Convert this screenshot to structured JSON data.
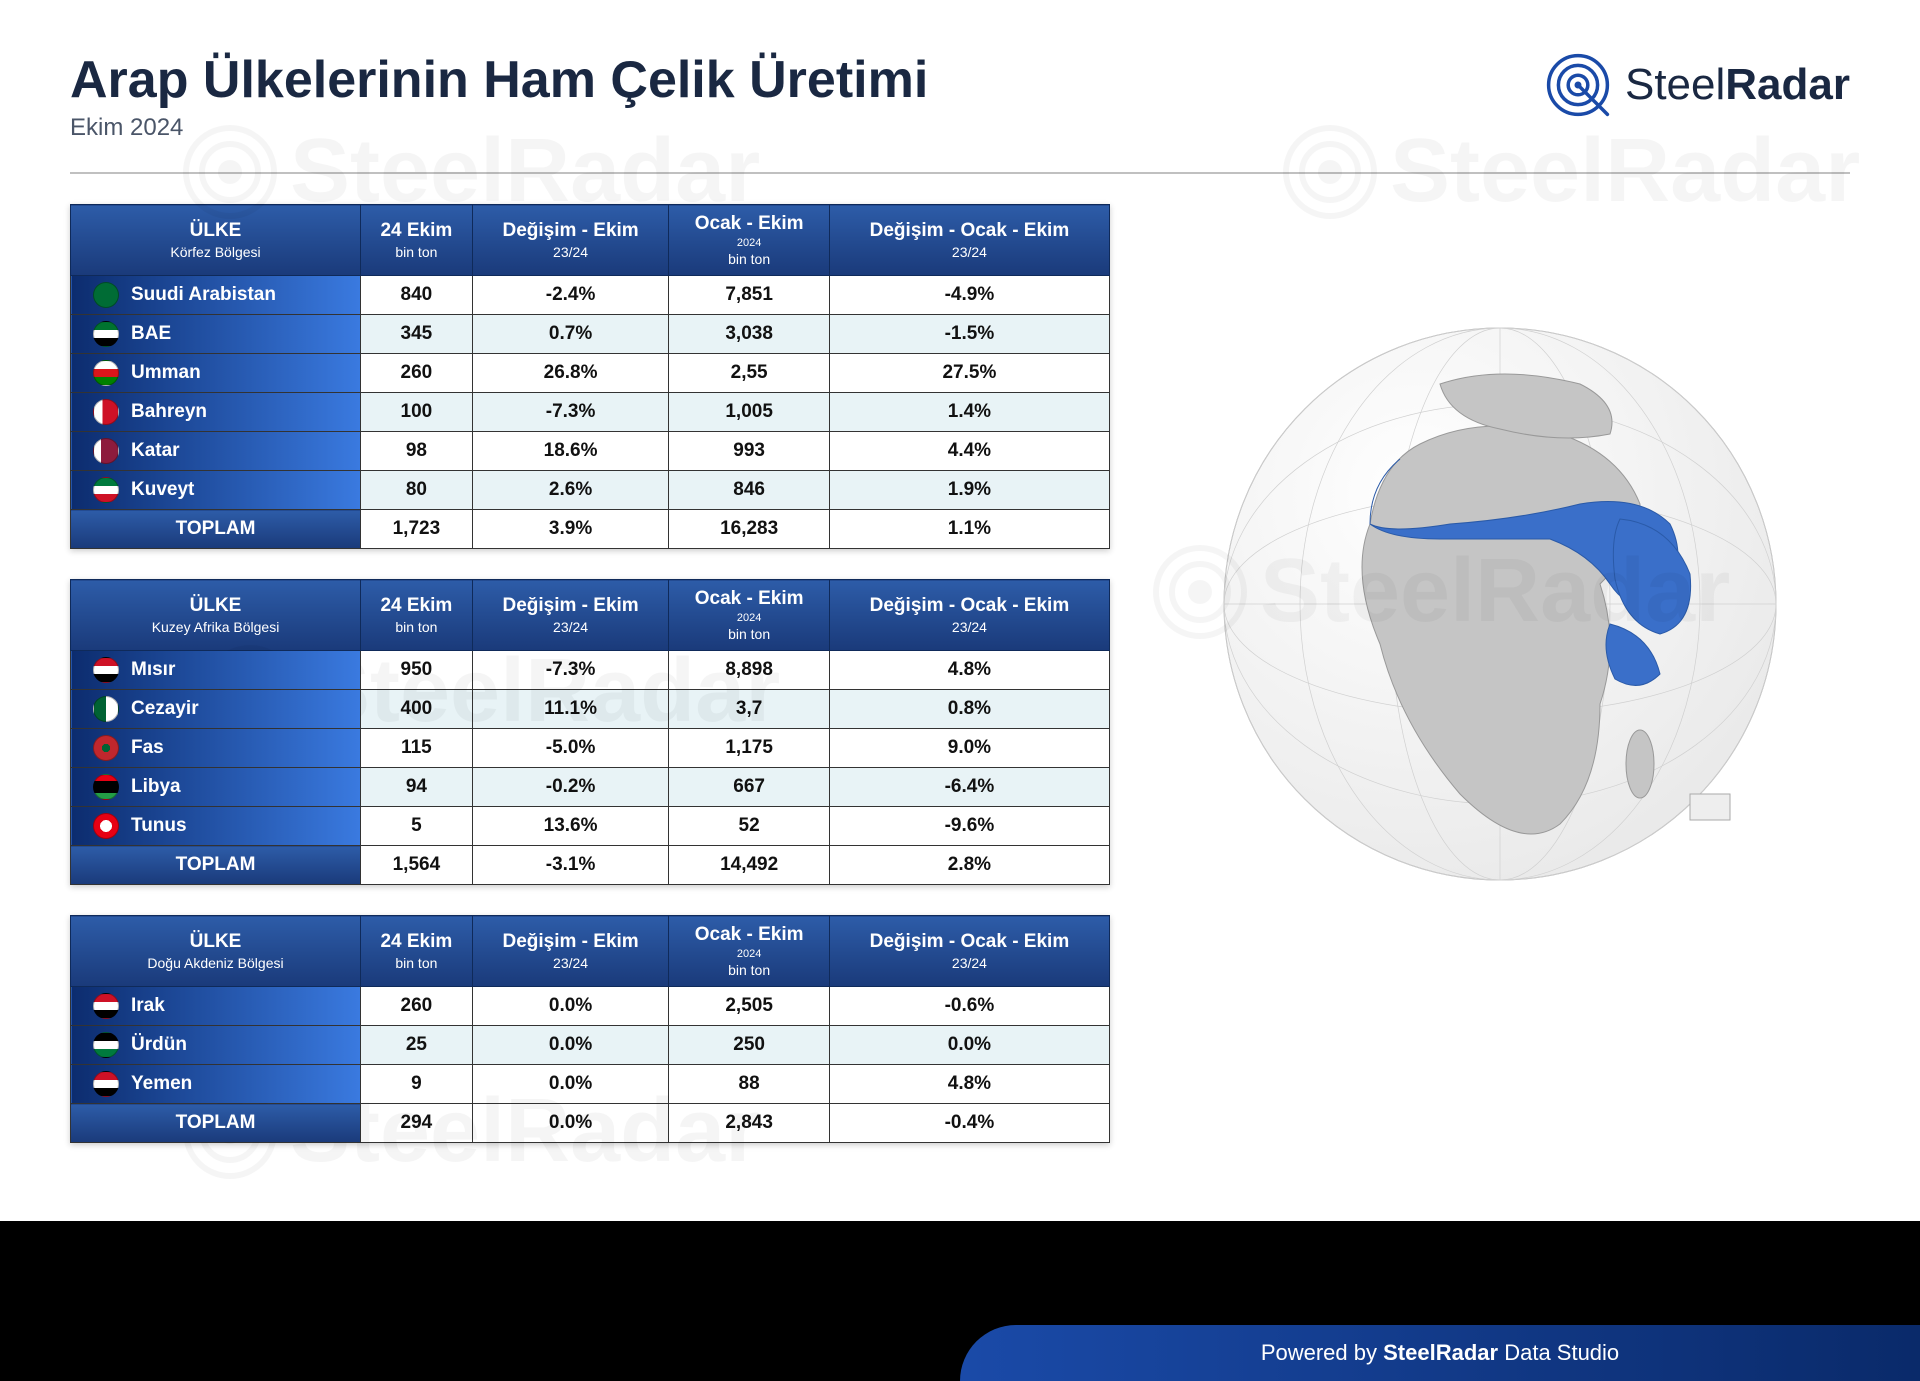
{
  "meta": {
    "title": "Arap Ülkelerinin Ham Çelik Üretimi",
    "subtitle": "Ekim 2024",
    "logo_text_1": "Steel",
    "logo_text_2": "Radar",
    "footer_prefix": "Powered by ",
    "footer_brand": "SteelRadar",
    "footer_suffix": " Data Studio",
    "watermark": "SteelRadar"
  },
  "colors": {
    "header_grad_top": "#2d5ca8",
    "header_grad_bottom": "#1a3a7a",
    "country_grad_left": "#0c2c6e",
    "country_grad_right": "#3a7ae0",
    "row_alt_bg": "#e8f3f6",
    "globe_land": "#c5c5c5",
    "globe_highlight": "#3a6fc9",
    "globe_ocean": "#ffffff",
    "title_color": "#1a2842",
    "watermark_color": "rgba(0,0,0,0.04)"
  },
  "columns": {
    "country_label": "ÜLKE",
    "c1_main": "24 Ekim",
    "c1_sub": "bin ton",
    "c2_main": "Değişim - Ekim",
    "c2_sub": "23/24",
    "c3_main": "Ocak - Ekim",
    "c3_mid": "2024",
    "c3_sub": "bin ton",
    "c4_main": "Değişim - Ocak - Ekim",
    "c4_sub": "23/24",
    "total_label": "TOPLAM"
  },
  "regions": [
    {
      "name": "Körfez Bölgesi",
      "rows": [
        {
          "country": "Suudi Arabistan",
          "flag_bg": "linear-gradient(#006c35,#006c35)",
          "v1": "840",
          "v2": "-2.4%",
          "v3": "7,851",
          "v4": "-4.9%"
        },
        {
          "country": "BAE",
          "flag_bg": "linear-gradient(to bottom,#00732f 33%,#fff 33% 66%,#000 66%)",
          "v1": "345",
          "v2": "0.7%",
          "v3": "3,038",
          "v4": "-1.5%"
        },
        {
          "country": "Umman",
          "flag_bg": "linear-gradient(to bottom,#fff 33%,#db161b 33% 66%,#008000 66%)",
          "v1": "260",
          "v2": "26.8%",
          "v3": "2,55",
          "v4": "27.5%"
        },
        {
          "country": "Bahreyn",
          "flag_bg": "linear-gradient(to right,#fff 35%,#ce1126 35%)",
          "v1": "100",
          "v2": "-7.3%",
          "v3": "1,005",
          "v4": "1.4%"
        },
        {
          "country": "Katar",
          "flag_bg": "linear-gradient(to right,#fff 30%,#8d1b3d 30%)",
          "v1": "98",
          "v2": "18.6%",
          "v3": "993",
          "v4": "4.4%"
        },
        {
          "country": "Kuveyt",
          "flag_bg": "linear-gradient(to bottom,#007a3d 33%,#fff 33% 66%,#ce1126 66%)",
          "v1": "80",
          "v2": "2.6%",
          "v3": "846",
          "v4": "1.9%"
        }
      ],
      "total": {
        "v1": "1,723",
        "v2": "3.9%",
        "v3": "16,283",
        "v4": "1.1%"
      }
    },
    {
      "name": "Kuzey Afrika Bölgesi",
      "rows": [
        {
          "country": "Mısır",
          "flag_bg": "linear-gradient(to bottom,#ce1126 33%,#fff 33% 66%,#000 66%)",
          "v1": "950",
          "v2": "-7.3%",
          "v3": "8,898",
          "v4": "4.8%"
        },
        {
          "country": "Cezayir",
          "flag_bg": "linear-gradient(to right,#006233 50%,#fff 50%)",
          "v1": "400",
          "v2": "11.1%",
          "v3": "3,7",
          "v4": "0.8%"
        },
        {
          "country": "Fas",
          "flag_bg": "radial-gradient(circle,#006233 25%,#c1272d 25%)",
          "v1": "115",
          "v2": "-5.0%",
          "v3": "1,175",
          "v4": "9.0%"
        },
        {
          "country": "Libya",
          "flag_bg": "linear-gradient(to bottom,#e70013 25%,#000 25% 75%,#239e46 75%)",
          "v1": "94",
          "v2": "-0.2%",
          "v3": "667",
          "v4": "-6.4%"
        },
        {
          "country": "Tunus",
          "flag_bg": "radial-gradient(circle,#fff 35%,#e70013 35%)",
          "v1": "5",
          "v2": "13.6%",
          "v3": "52",
          "v4": "-9.6%"
        }
      ],
      "total": {
        "v1": "1,564",
        "v2": "-3.1%",
        "v3": "14,492",
        "v4": "2.8%"
      }
    },
    {
      "name": "Doğu Akdeniz Bölgesi",
      "rows": [
        {
          "country": "Irak",
          "flag_bg": "linear-gradient(to bottom,#ce1126 33%,#fff 33% 66%,#000 66%)",
          "v1": "260",
          "v2": "0.0%",
          "v3": "2,505",
          "v4": "-0.6%"
        },
        {
          "country": "Ürdün",
          "flag_bg": "linear-gradient(to bottom,#000 33%,#fff 33% 66%,#007a3d 66%)",
          "v1": "25",
          "v2": "0.0%",
          "v3": "250",
          "v4": "0.0%"
        },
        {
          "country": "Yemen",
          "flag_bg": "linear-gradient(to bottom,#ce1126 33%,#fff 33% 66%,#000 66%)",
          "v1": "9",
          "v2": "0.0%",
          "v3": "88",
          "v4": "4.8%"
        }
      ],
      "total": {
        "v1": "294",
        "v2": "0.0%",
        "v3": "2,843",
        "v4": "-0.4%"
      }
    }
  ]
}
